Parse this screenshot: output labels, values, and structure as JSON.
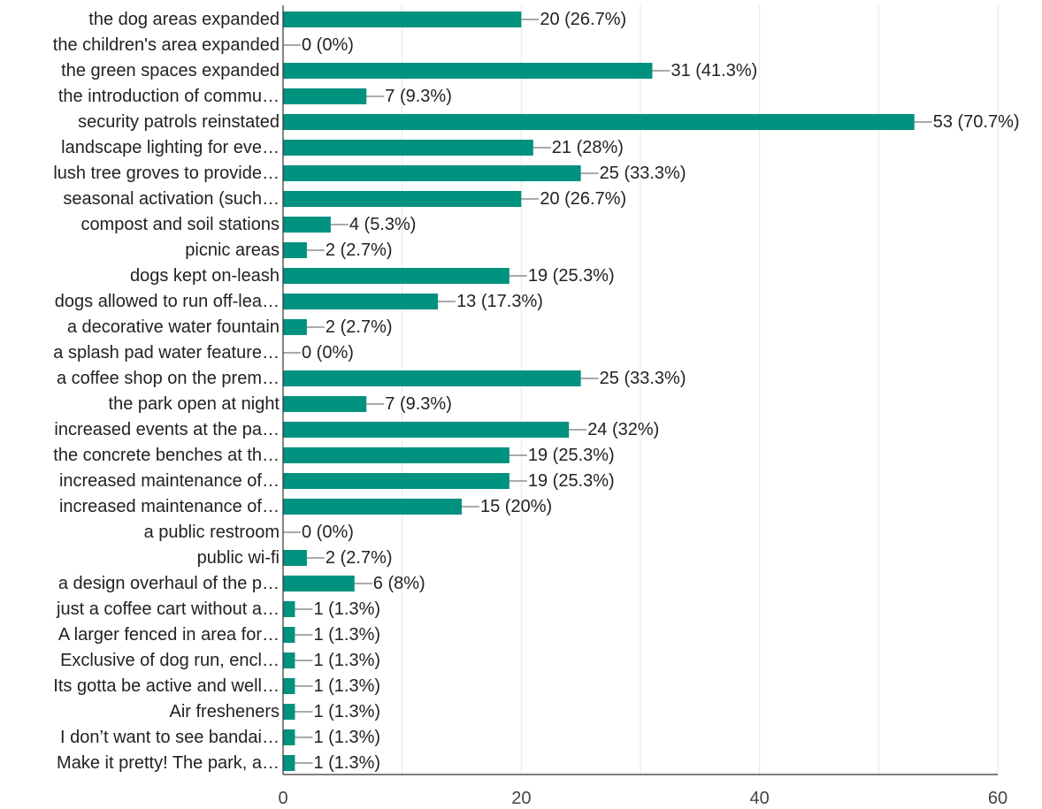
{
  "chart_data": {
    "type": "bar",
    "orientation": "horizontal",
    "title": "",
    "xlabel": "",
    "ylabel": "",
    "xlim": [
      0,
      60
    ],
    "xticks": [
      0,
      20,
      40,
      60
    ],
    "grid": true,
    "bar_color": "#00927f",
    "categories": [
      "the dog areas expanded",
      "the children's area expanded",
      "the green spaces expanded",
      "the introduction of commu…",
      "security patrols reinstated",
      "landscape lighting for eve…",
      "lush tree groves to provide…",
      "seasonal activation (such…",
      "compost and soil stations",
      "picnic areas",
      "dogs kept on-leash",
      "dogs allowed to run off-lea…",
      "a decorative water fountain",
      "a splash pad water feature…",
      "a coffee shop on the prem…",
      "the park open at night",
      "increased events at the pa…",
      "the concrete benches at th…",
      "increased maintenance of…",
      "increased maintenance of…",
      "a public restroom",
      "public wi-fi",
      "a design overhaul of the p…",
      "just a coffee cart without a…",
      "A larger fenced in area for…",
      "Exclusive of dog run, encl…",
      "Its gotta be active and well…",
      "Air fresheners",
      "I don’t want to see bandai…",
      "Make it pretty! The park, a…"
    ],
    "values": [
      20,
      0,
      31,
      7,
      53,
      21,
      25,
      20,
      4,
      2,
      19,
      13,
      2,
      0,
      25,
      7,
      24,
      19,
      19,
      15,
      0,
      2,
      6,
      1,
      1,
      1,
      1,
      1,
      1,
      1
    ],
    "value_labels": [
      "20 (26.7%)",
      "0 (0%)",
      "31 (41.3%)",
      "7 (9.3%)",
      "53 (70.7%)",
      "21 (28%)",
      "25 (33.3%)",
      "20 (26.7%)",
      "4 (5.3%)",
      "2 (2.7%)",
      "19 (25.3%)",
      "13 (17.3%)",
      "2 (2.7%)",
      "0 (0%)",
      "25 (33.3%)",
      "7 (9.3%)",
      "24 (32%)",
      "19 (25.3%)",
      "19 (25.3%)",
      "15 (20%)",
      "0 (0%)",
      "2 (2.7%)",
      "6 (8%)",
      "1 (1.3%)",
      "1 (1.3%)",
      "1 (1.3%)",
      "1 (1.3%)",
      "1 (1.3%)",
      "1 (1.3%)",
      "1 (1.3%)"
    ]
  }
}
